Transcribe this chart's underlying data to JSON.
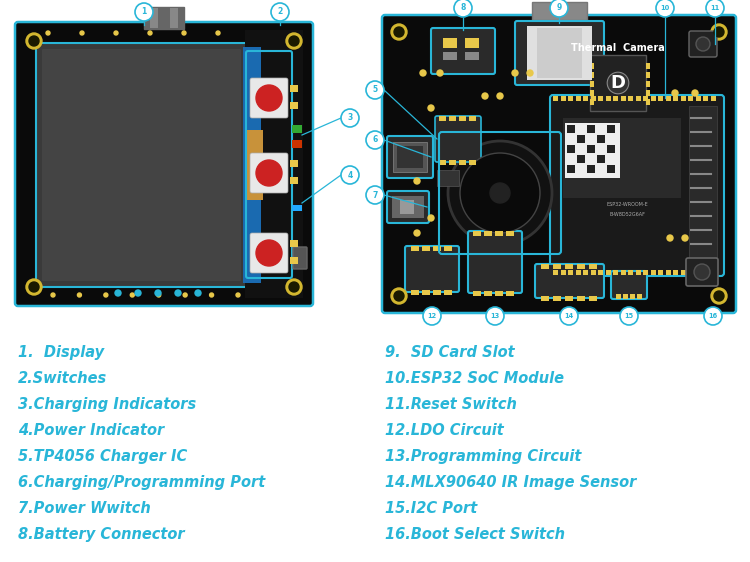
{
  "bg_color": "#ffffff",
  "label_color": "#29b6d8",
  "callout_color": "#29b6d8",
  "left_labels": [
    "1.  Display",
    "2.Switches",
    "3.Charging Indicators",
    "4.Power Indicator",
    "5.TP4056 Charger IC",
    "6.Charging/Programming Port",
    "7.Power Wwitch",
    "8.Battery Connector"
  ],
  "right_labels": [
    "9.  SD Card Slot",
    "10.ESP32 SoC Module",
    "11.Reset Switch",
    "12.LDO Circuit",
    "13.Programming Circuit",
    "14.MLX90640 IR Image Sensor",
    "15.I2C Port",
    "16.Boot Select Switch"
  ],
  "figsize": [
    7.5,
    5.62
  ],
  "dpi": 100,
  "board_dark": "#0a0a0a",
  "board_mid": "#151515",
  "cyan_border": "#29b6d8",
  "yellow": "#e8c84a",
  "hole_yellow": "#d4b830"
}
